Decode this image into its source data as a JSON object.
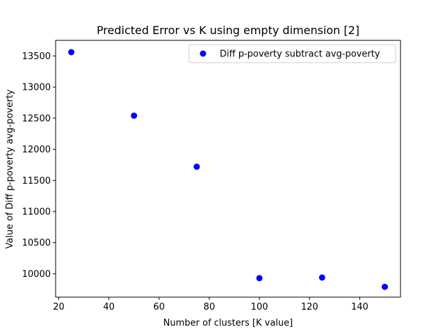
{
  "chart_data": {
    "type": "scatter",
    "title": "Predicted Error vs K using empty dimension [2]",
    "xlabel": "Number of clusters [K value]",
    "ylabel": "Value of Diff p-poverty avg-poverty",
    "xlim": [
      18.75,
      156.25
    ],
    "ylim": [
      9625,
      13750
    ],
    "xticks": [
      20,
      40,
      60,
      80,
      100,
      120,
      140
    ],
    "yticks": [
      10000,
      10500,
      11000,
      11500,
      12000,
      12500,
      13000,
      13500
    ],
    "grid": false,
    "legend_position": "top-right",
    "series": [
      {
        "name": "Diff p-poverty subtract avg-poverty",
        "color": "#0000ff",
        "marker": "circle",
        "points": [
          {
            "x": 25,
            "y": 13560
          },
          {
            "x": 50,
            "y": 12540
          },
          {
            "x": 75,
            "y": 11720
          },
          {
            "x": 100,
            "y": 9930
          },
          {
            "x": 125,
            "y": 9940
          },
          {
            "x": 150,
            "y": 9790
          }
        ]
      }
    ]
  }
}
